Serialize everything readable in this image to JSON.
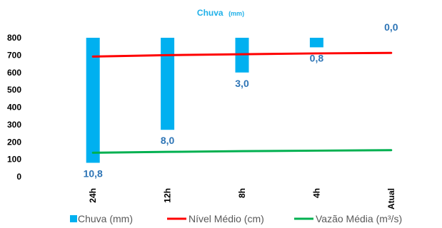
{
  "chart_data": {
    "type": "bar",
    "title": "Chuva",
    "title_unit": "(mm)",
    "categories": [
      "24h",
      "12h",
      "8h",
      "4h",
      "Atual"
    ],
    "y_ticks": [
      "0",
      "100",
      "200",
      "300",
      "400",
      "500",
      "600",
      "700",
      "800"
    ],
    "ylim": [
      0,
      800
    ],
    "grid": false,
    "legend_position": "bottom",
    "series": [
      {
        "name": "Chuva (mm)",
        "kind": "bar",
        "inverted": true,
        "color": "#00b0f0",
        "values": [
          10.8,
          8.0,
          3.0,
          0.8,
          0.0
        ],
        "labels": [
          "10,8",
          "8,0",
          "3,0",
          "0,8",
          "0,0"
        ],
        "bar_bottom_on_axis": [
          80,
          270,
          600,
          745,
          800
        ]
      },
      {
        "name": "Nível Médio (cm)",
        "kind": "line",
        "color": "#ff0000",
        "values": [
          692,
          700,
          705,
          710,
          713
        ]
      },
      {
        "name": "Vazão Média (m³/s)",
        "kind": "line",
        "color": "#00b050",
        "values": [
          138,
          143,
          147,
          150,
          153
        ]
      }
    ]
  }
}
